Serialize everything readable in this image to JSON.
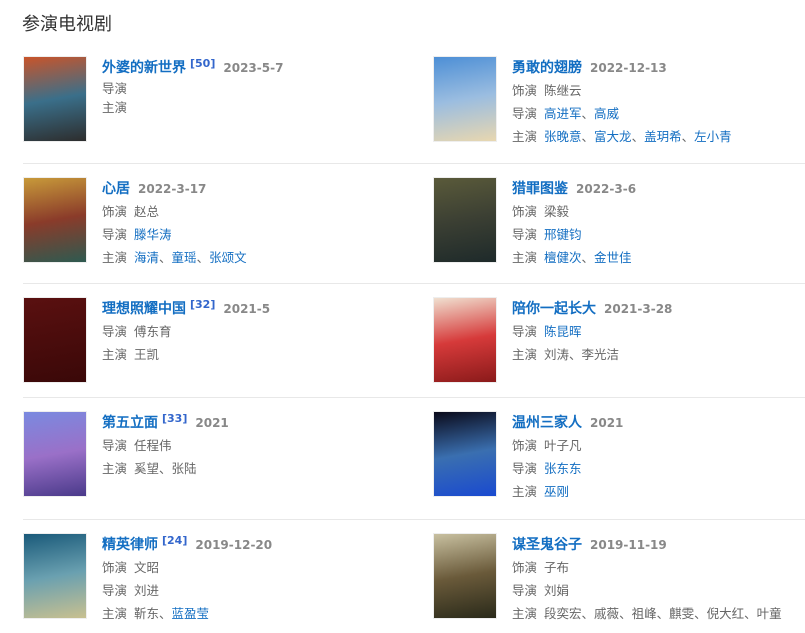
{
  "section_title": "参演电视剧",
  "labels": {
    "role": "饰演",
    "director": "导演",
    "cast": "主演"
  },
  "colors": {
    "link": "#136ec2",
    "text": "#666666",
    "date": "#888888",
    "ref": "#3366cc"
  },
  "items": [
    {
      "title": "外婆的新世界",
      "ref": "[50]",
      "date": "2023-5-7",
      "compact": true,
      "poster": [
        "#c9542a",
        "#3a6f8a",
        "#2d2d2d"
      ],
      "lines": [
        {
          "type": "director",
          "people": []
        },
        {
          "type": "cast",
          "people": []
        }
      ]
    },
    {
      "title": "勇敢的翅膀",
      "ref": "",
      "date": "2022-12-13",
      "poster": [
        "#4d8fd6",
        "#9bbde0",
        "#e8d7b0"
      ],
      "lines": [
        {
          "type": "role",
          "people": [
            {
              "name": "陈继云",
              "link": false
            }
          ]
        },
        {
          "type": "director",
          "people": [
            {
              "name": "高进军",
              "link": true
            },
            {
              "name": "高威",
              "link": true
            }
          ]
        },
        {
          "type": "cast",
          "people": [
            {
              "name": "张晚意",
              "link": true
            },
            {
              "name": "富大龙",
              "link": true
            },
            {
              "name": "盖玥希",
              "link": true
            },
            {
              "name": "左小青",
              "link": true
            }
          ]
        }
      ]
    },
    {
      "title": "心居",
      "ref": "",
      "date": "2022-3-17",
      "poster": [
        "#c89a3a",
        "#8a3b2a",
        "#2e5a50"
      ],
      "lines": [
        {
          "type": "role",
          "people": [
            {
              "name": "赵总",
              "link": false
            }
          ]
        },
        {
          "type": "director",
          "people": [
            {
              "name": "滕华涛",
              "link": true
            }
          ]
        },
        {
          "type": "cast",
          "people": [
            {
              "name": "海清",
              "link": true
            },
            {
              "name": "童瑶",
              "link": true
            },
            {
              "name": "张颂文",
              "link": true
            }
          ]
        }
      ]
    },
    {
      "title": "猎罪图鉴",
      "ref": "",
      "date": "2022-3-6",
      "poster": [
        "#5a5a3a",
        "#3b3f33",
        "#1e2a2a"
      ],
      "lines": [
        {
          "type": "role",
          "people": [
            {
              "name": "梁毅",
              "link": false
            }
          ]
        },
        {
          "type": "director",
          "people": [
            {
              "name": "邢键钧",
              "link": true
            }
          ]
        },
        {
          "type": "cast",
          "people": [
            {
              "name": "檀健次",
              "link": true
            },
            {
              "name": "金世佳",
              "link": true
            }
          ]
        }
      ]
    },
    {
      "title": "理想照耀中国",
      "ref": "[32]",
      "date": "2021-5",
      "poster": [
        "#5a1010",
        "#4a0c0c",
        "#3a0808"
      ],
      "lines": [
        {
          "type": "director",
          "people": [
            {
              "name": "傅东育",
              "link": false
            }
          ]
        },
        {
          "type": "cast",
          "people": [
            {
              "name": "王凯",
              "link": false
            }
          ]
        }
      ]
    },
    {
      "title": "陪你一起长大",
      "ref": "",
      "date": "2021-3-28",
      "poster": [
        "#f0e0d0",
        "#d63a3a",
        "#8a1a1a"
      ],
      "lines": [
        {
          "type": "director",
          "people": [
            {
              "name": "陈昆晖",
              "link": true
            }
          ]
        },
        {
          "type": "cast",
          "people": [
            {
              "name": "刘涛",
              "link": false
            },
            {
              "name": "李光洁",
              "link": false
            }
          ]
        }
      ]
    },
    {
      "title": "第五立面",
      "ref": "[33]",
      "date": "2021",
      "poster": [
        "#7a8ae0",
        "#9a70c8",
        "#4a3a8a"
      ],
      "lines": [
        {
          "type": "director",
          "people": [
            {
              "name": "任程伟",
              "link": false
            }
          ]
        },
        {
          "type": "cast",
          "people": [
            {
              "name": "奚望",
              "link": false
            },
            {
              "name": "张陆",
              "link": false
            }
          ]
        }
      ]
    },
    {
      "title": "温州三家人",
      "ref": "",
      "date": "2021",
      "poster": [
        "#0a0a1a",
        "#3a6fb0",
        "#1a4ad0"
      ],
      "lines": [
        {
          "type": "role",
          "people": [
            {
              "name": "叶子凡",
              "link": false
            }
          ]
        },
        {
          "type": "director",
          "people": [
            {
              "name": "张东东",
              "link": true
            }
          ]
        },
        {
          "type": "cast",
          "people": [
            {
              "name": "巫刚",
              "link": true
            }
          ]
        }
      ]
    },
    {
      "title": "精英律师",
      "ref": "[24]",
      "date": "2019-12-20",
      "poster": [
        "#1a5a7a",
        "#6aa0b0",
        "#c8c090"
      ],
      "lines": [
        {
          "type": "role",
          "people": [
            {
              "name": "文昭",
              "link": false
            }
          ]
        },
        {
          "type": "director",
          "people": [
            {
              "name": "刘进",
              "link": false
            }
          ]
        },
        {
          "type": "cast",
          "people": [
            {
              "name": "靳东",
              "link": false
            },
            {
              "name": "蓝盈莹",
              "link": true
            }
          ]
        }
      ]
    },
    {
      "title": "谋圣鬼谷子",
      "ref": "",
      "date": "2019-11-19",
      "poster": [
        "#c8c0a0",
        "#6a5a3a",
        "#2a2a1a"
      ],
      "lines": [
        {
          "type": "role",
          "people": [
            {
              "name": "子布",
              "link": false
            }
          ]
        },
        {
          "type": "director",
          "people": [
            {
              "name": "刘娟",
              "link": false
            }
          ]
        },
        {
          "type": "cast",
          "people": [
            {
              "name": "段奕宏",
              "link": false
            },
            {
              "name": "戚薇",
              "link": false
            },
            {
              "name": "祖峰",
              "link": false
            },
            {
              "name": "麒雯",
              "link": false
            },
            {
              "name": "倪大红",
              "link": false
            },
            {
              "name": "叶童",
              "link": false
            }
          ]
        }
      ]
    }
  ]
}
